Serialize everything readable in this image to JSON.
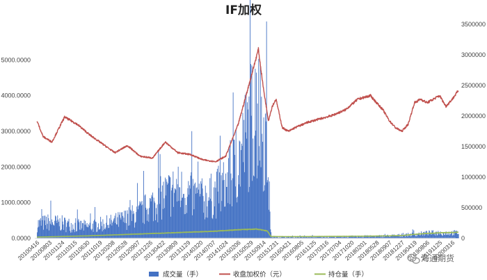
{
  "chart_data": {
    "type": "bar+line",
    "title": "IF加权",
    "y_left": {
      "range": [
        0,
        6000
      ],
      "ticks": [
        "0.0000",
        "1000.0000",
        "2000.0000",
        "3000.0000",
        "4000.0000",
        "5000.0000"
      ]
    },
    "y_right": {
      "range": [
        0,
        3500000
      ],
      "ticks": [
        "0",
        "500000",
        "1000000",
        "1500000",
        "2000000",
        "2500000",
        "3000000",
        "3500000"
      ]
    },
    "x_ticks": [
      "20100416",
      "20100803",
      "20101124",
      "20110315",
      "20110630",
      "20111019",
      "20120208",
      "20120528",
      "20120907",
      "20121226",
      "20130422",
      "20130809",
      "20131129",
      "20140320",
      "20140707",
      "20141024",
      "20150206",
      "20150529",
      "20150914",
      "20151231",
      "20160421",
      "20160805",
      "20161125",
      "20170316",
      "20170704",
      "20171020",
      "20180201",
      "20180528",
      "20180907",
      "20181227",
      "20190419",
      "20190806",
      "20191125",
      "20200316"
    ],
    "series": [
      {
        "name": "成交量（手）",
        "type": "bar",
        "axis": "right",
        "color": "#4472C4",
        "points": [
          [
            0,
            280000
          ],
          [
            1,
            320000
          ],
          [
            2,
            290000
          ],
          [
            3,
            250000
          ],
          [
            4,
            230000
          ],
          [
            5,
            270000
          ],
          [
            6,
            310000
          ],
          [
            7,
            380000
          ],
          [
            8,
            470000
          ],
          [
            9,
            640000
          ],
          [
            10,
            820000
          ],
          [
            11,
            960000
          ],
          [
            12,
            880000
          ],
          [
            13,
            760000
          ],
          [
            14,
            840000
          ],
          [
            15,
            1050000
          ],
          [
            16,
            1500000
          ],
          [
            17,
            2300000
          ],
          [
            17.6,
            2500000
          ],
          [
            18.2,
            1900000
          ],
          [
            18.6,
            30000
          ],
          [
            19,
            25000
          ],
          [
            20,
            24000
          ],
          [
            21,
            25000
          ],
          [
            22,
            28000
          ],
          [
            23,
            30000
          ],
          [
            24,
            32000
          ],
          [
            25,
            35000
          ],
          [
            26,
            38000
          ],
          [
            27,
            42000
          ],
          [
            28,
            50000
          ],
          [
            29,
            60000
          ],
          [
            30,
            80000
          ],
          [
            31,
            100000
          ],
          [
            32,
            110000
          ],
          [
            33,
            105000
          ],
          [
            33.5,
            110000
          ]
        ]
      },
      {
        "name": "收盘加权价（元）",
        "type": "line",
        "axis": "left",
        "color": "#C0504D",
        "points": [
          [
            0,
            3300
          ],
          [
            0.5,
            2850
          ],
          [
            1.2,
            2700
          ],
          [
            2.2,
            3400
          ],
          [
            3.2,
            3200
          ],
          [
            4.2,
            2900
          ],
          [
            5.2,
            2650
          ],
          [
            6.2,
            2400
          ],
          [
            7.2,
            2600
          ],
          [
            8.2,
            2300
          ],
          [
            9.2,
            2250
          ],
          [
            10.2,
            2700
          ],
          [
            11.2,
            2400
          ],
          [
            12.2,
            2350
          ],
          [
            13.2,
            2200
          ],
          [
            14.2,
            2150
          ],
          [
            15.0,
            2300
          ],
          [
            16.0,
            3200
          ],
          [
            17.0,
            4500
          ],
          [
            17.6,
            5300
          ],
          [
            18.0,
            4200
          ],
          [
            18.4,
            3300
          ],
          [
            18.7,
            3700
          ],
          [
            19.0,
            3900
          ],
          [
            19.5,
            3100
          ],
          [
            20.0,
            3000
          ],
          [
            20.5,
            3100
          ],
          [
            21.5,
            3250
          ],
          [
            22.5,
            3350
          ],
          [
            23.5,
            3450
          ],
          [
            24.5,
            3600
          ],
          [
            25.5,
            3900
          ],
          [
            26.5,
            4000
          ],
          [
            27.0,
            3800
          ],
          [
            27.5,
            3600
          ],
          [
            28.0,
            3300
          ],
          [
            28.5,
            3100
          ],
          [
            29.0,
            3000
          ],
          [
            29.5,
            3200
          ],
          [
            30.0,
            3800
          ],
          [
            30.5,
            3900
          ],
          [
            31.0,
            3800
          ],
          [
            31.5,
            3900
          ],
          [
            32.0,
            4000
          ],
          [
            32.5,
            3700
          ],
          [
            33.0,
            3900
          ],
          [
            33.5,
            4150
          ]
        ]
      },
      {
        "name": "持仓量（手）",
        "type": "line",
        "axis": "right",
        "color": "#9BBB59",
        "points": [
          [
            0,
            20000
          ],
          [
            2,
            30000
          ],
          [
            4,
            40000
          ],
          [
            6,
            55000
          ],
          [
            8,
            70000
          ],
          [
            10,
            85000
          ],
          [
            12,
            100000
          ],
          [
            14,
            115000
          ],
          [
            16,
            140000
          ],
          [
            17.5,
            150000
          ],
          [
            18.3,
            120000
          ],
          [
            18.6,
            30000
          ],
          [
            20,
            28000
          ],
          [
            22,
            30000
          ],
          [
            24,
            32000
          ],
          [
            26,
            35000
          ],
          [
            28,
            40000
          ],
          [
            29,
            45000
          ],
          [
            30,
            65000
          ],
          [
            31,
            80000
          ],
          [
            32,
            90000
          ],
          [
            33,
            95000
          ],
          [
            33.5,
            100000
          ]
        ]
      }
    ],
    "legend": {
      "position": "bottom"
    }
  },
  "watermark": {
    "text": "海通期货"
  }
}
